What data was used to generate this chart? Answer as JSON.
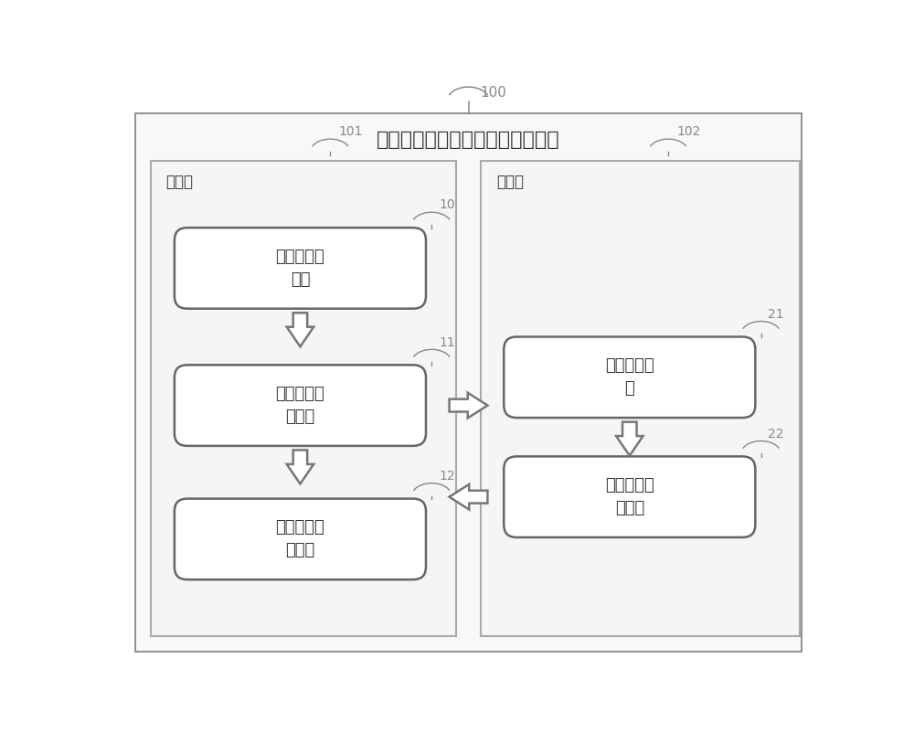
{
  "title": "用于教学过程的课后作业实现系统",
  "outer_label": "100",
  "left_box_label": "教师端",
  "right_box_label": "学生端",
  "left_panel_label": "101",
  "right_panel_label": "102",
  "modules": {
    "left": [
      {
        "text": "试题库管理\n模块",
        "label": "10"
      },
      {
        "text": "作业录入编\n辑模块",
        "label": "11"
      },
      {
        "text": "教师数据统\n计模块",
        "label": "12"
      }
    ],
    "right": [
      {
        "text": "学生答题模\n块",
        "label": "21"
      },
      {
        "text": "学生成绩查\n询模块",
        "label": "22"
      }
    ]
  },
  "bg_color": "#ffffff",
  "outer_bg": "#f8f8f8",
  "panel_bg": "#f0f0f0",
  "box_bg": "#ffffff",
  "border_color": "#888888",
  "box_border": "#666666",
  "text_color": "#333333",
  "label_color": "#888888",
  "arrow_face": "#ffffff",
  "arrow_edge": "#777777"
}
